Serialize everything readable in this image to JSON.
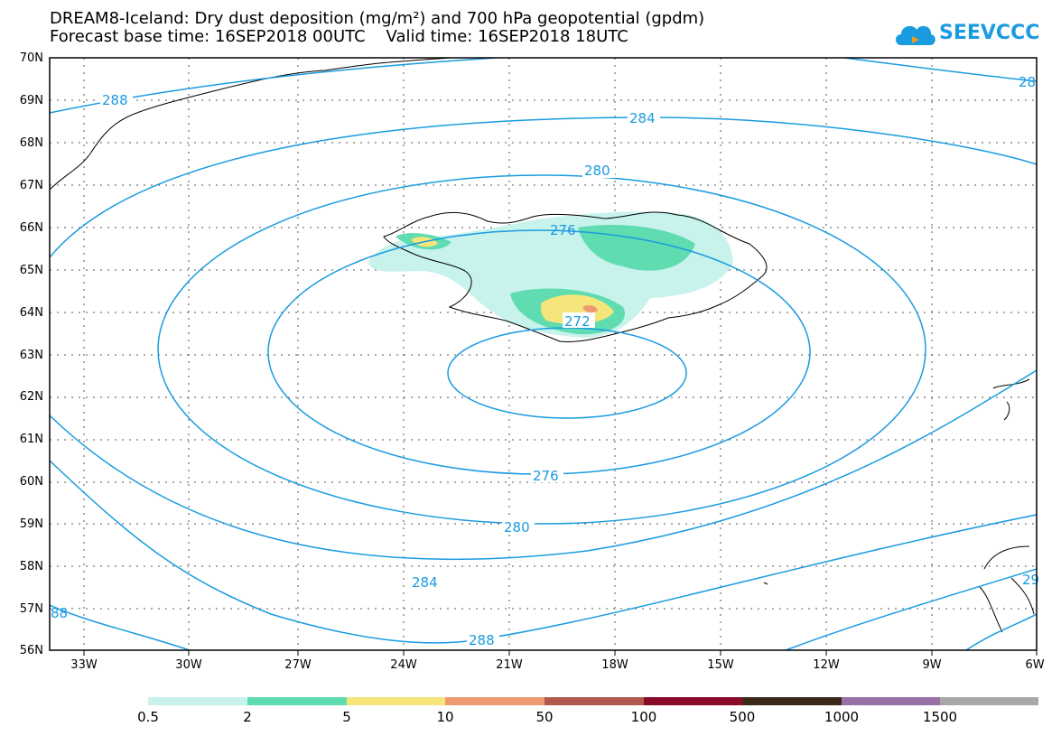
{
  "title": {
    "line1": "DREAM8-Iceland: Dry dust deposition (mg/m²) and 700 hPa geopotential (gpdm)",
    "line2": "Forecast base time: 16SEP2018 00UTC    Valid time: 16SEP2018 18UTC"
  },
  "logo": {
    "text": "SEEVCCC",
    "color": "#1a9be0",
    "icon": "cloud-icon"
  },
  "map": {
    "lat_labels": [
      "70N",
      "69N",
      "68N",
      "67N",
      "66N",
      "65N",
      "64N",
      "63N",
      "62N",
      "61N",
      "60N",
      "59N",
      "58N",
      "57N",
      "56N"
    ],
    "lon_labels": [
      "33W",
      "30W",
      "27W",
      "24W",
      "21W",
      "18W",
      "15W",
      "12W",
      "9W",
      "6W"
    ],
    "contour_color": "#1a9be0",
    "contour_labels": [
      "288",
      "284",
      "280",
      "276",
      "272",
      "276",
      "280",
      "284",
      "288",
      "88",
      "28",
      "29"
    ]
  },
  "legend": {
    "colors": [
      "#c8f2ec",
      "#5fdcb0",
      "#f5e57a",
      "#ee9a70",
      "#b05a4e",
      "#8a0a2a",
      "#3a2a1a",
      "#9a70a8",
      "#a8a8a8"
    ],
    "labels": [
      "0.5",
      "2",
      "5",
      "10",
      "50",
      "100",
      "500",
      "1000",
      "1500"
    ]
  }
}
